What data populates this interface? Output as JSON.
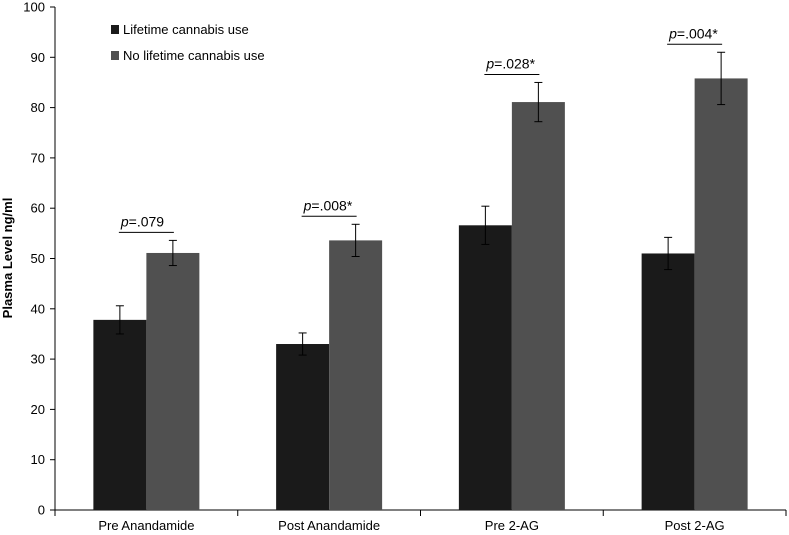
{
  "chart_data": {
    "type": "bar",
    "ylabel": "Plasma Level ng/ml",
    "xlabel": "",
    "ylim": [
      0,
      100
    ],
    "yticks": [
      0,
      10,
      20,
      30,
      40,
      50,
      60,
      70,
      80,
      90,
      100
    ],
    "categories": [
      "Pre Anandamide",
      "Post Anandamide",
      "Pre 2-AG",
      "Post 2-AG"
    ],
    "series": [
      {
        "name": "Lifetime cannabis use",
        "color": "#1a1a1a",
        "values": [
          37.8,
          33.0,
          56.6,
          51.0
        ],
        "error": [
          2.8,
          2.2,
          3.8,
          3.2
        ]
      },
      {
        "name": "No lifetime cannabis use",
        "color": "#505050",
        "values": [
          51.1,
          53.6,
          81.1,
          85.8
        ],
        "error": [
          2.5,
          3.2,
          3.9,
          5.2
        ]
      }
    ],
    "annotations": [
      {
        "p_prefix": "p",
        "p_value": "=.079"
      },
      {
        "p_prefix": "p",
        "p_value": "=.008*"
      },
      {
        "p_prefix": "p",
        "p_value": "=.028*"
      },
      {
        "p_prefix": "p",
        "p_value": "=.004*"
      }
    ],
    "legend_position": "top-left",
    "grid": false
  }
}
